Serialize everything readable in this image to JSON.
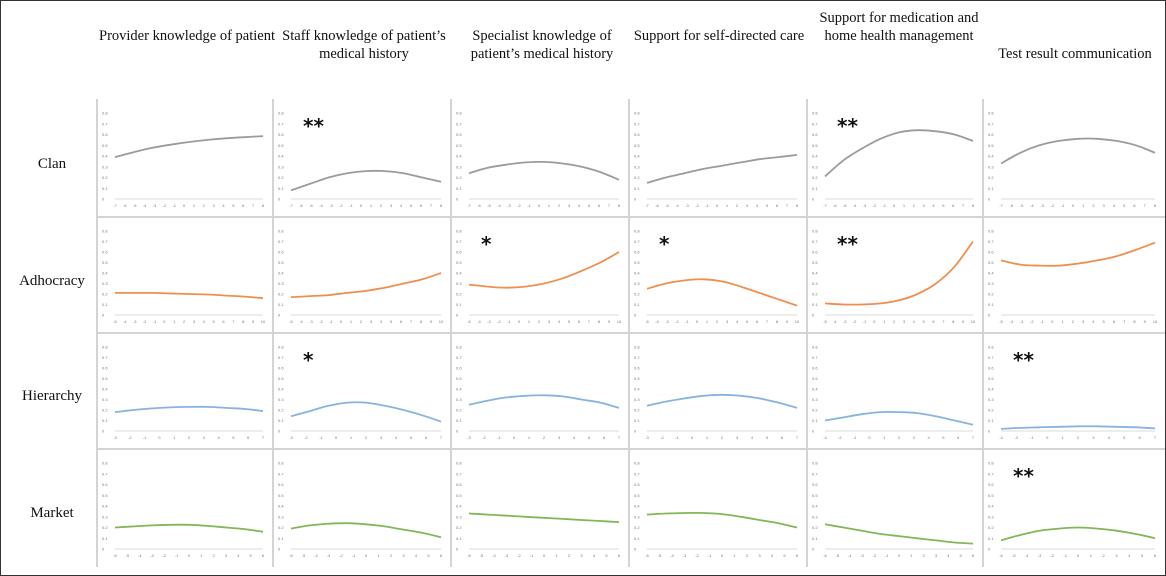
{
  "columns": [
    "Provider knowledge of patient",
    "Staff knowledge of patient’s medical history",
    "Specialist knowledge of patient’s medical history",
    "Support for self-directed care",
    "Support for medication and home health management",
    "Test result communication"
  ],
  "rows": [
    {
      "label": "Clan",
      "color": "#9b9b9b"
    },
    {
      "label": "Adhocracy",
      "color": "#ef8f4f"
    },
    {
      "label": "Hierarchy",
      "color": "#88b3e0"
    },
    {
      "label": "Market",
      "color": "#83b659"
    }
  ],
  "chart_data": {
    "type": "line",
    "ylim": [
      0,
      0.8
    ],
    "y_ticks": [
      "0",
      "0.1",
      "0.2",
      "0.3",
      "0.4",
      "0.5",
      "0.6",
      "0.7",
      "0.8"
    ],
    "row_x_ticks": [
      [
        "-7",
        "-6",
        "-5",
        "-4",
        "-3",
        "-2",
        "-1",
        "0",
        "1",
        "2",
        "3",
        "4",
        "5",
        "6",
        "7",
        "8"
      ],
      [
        "-5",
        "-4",
        "-3",
        "-2",
        "-1",
        "0",
        "1",
        "2",
        "3",
        "4",
        "5",
        "6",
        "7",
        "8",
        "9",
        "10"
      ],
      [
        "-3",
        "-2",
        "-1",
        "0",
        "1",
        "2",
        "3",
        "4",
        "5",
        "6",
        "7"
      ],
      [
        "-6",
        "-5",
        "-4",
        "-3",
        "-2",
        "-1",
        "0",
        "1",
        "2",
        "3",
        "4",
        "5",
        "6"
      ]
    ],
    "panels": [
      [
        {
          "significance": "",
          "y": [
            0.39,
            0.435,
            0.475,
            0.505,
            0.53,
            0.55,
            0.565,
            0.575,
            0.585
          ]
        },
        {
          "significance": "**",
          "y": [
            0.08,
            0.14,
            0.2,
            0.24,
            0.26,
            0.26,
            0.24,
            0.2,
            0.16
          ]
        },
        {
          "significance": "",
          "y": [
            0.24,
            0.29,
            0.32,
            0.34,
            0.345,
            0.33,
            0.3,
            0.25,
            0.18
          ]
        },
        {
          "significance": "",
          "y": [
            0.15,
            0.2,
            0.24,
            0.28,
            0.31,
            0.34,
            0.37,
            0.39,
            0.41
          ]
        },
        {
          "significance": "**",
          "y": [
            0.21,
            0.36,
            0.47,
            0.56,
            0.62,
            0.64,
            0.63,
            0.6,
            0.54
          ]
        },
        {
          "significance": "",
          "y": [
            0.33,
            0.43,
            0.5,
            0.54,
            0.56,
            0.56,
            0.54,
            0.5,
            0.43
          ]
        }
      ],
      [
        {
          "significance": "",
          "y": [
            0.21,
            0.21,
            0.21,
            0.205,
            0.2,
            0.195,
            0.185,
            0.175,
            0.16
          ]
        },
        {
          "significance": "",
          "y": [
            0.17,
            0.18,
            0.19,
            0.21,
            0.23,
            0.26,
            0.3,
            0.34,
            0.4
          ]
        },
        {
          "significance": "*",
          "y": [
            0.29,
            0.27,
            0.26,
            0.27,
            0.3,
            0.35,
            0.42,
            0.5,
            0.6
          ]
        },
        {
          "significance": "*",
          "y": [
            0.25,
            0.3,
            0.33,
            0.34,
            0.32,
            0.27,
            0.21,
            0.15,
            0.09
          ]
        },
        {
          "significance": "**",
          "y": [
            0.11,
            0.1,
            0.1,
            0.11,
            0.14,
            0.2,
            0.3,
            0.46,
            0.7
          ]
        },
        {
          "significance": "",
          "y": [
            0.52,
            0.48,
            0.47,
            0.47,
            0.49,
            0.52,
            0.56,
            0.62,
            0.69
          ]
        }
      ],
      [
        {
          "significance": "",
          "y": [
            0.18,
            0.2,
            0.215,
            0.225,
            0.23,
            0.23,
            0.22,
            0.21,
            0.19
          ]
        },
        {
          "significance": "*",
          "y": [
            0.14,
            0.19,
            0.24,
            0.27,
            0.27,
            0.24,
            0.2,
            0.15,
            0.09
          ]
        },
        {
          "significance": "",
          "y": [
            0.25,
            0.29,
            0.32,
            0.335,
            0.34,
            0.33,
            0.3,
            0.27,
            0.22
          ]
        },
        {
          "significance": "",
          "y": [
            0.24,
            0.28,
            0.31,
            0.335,
            0.345,
            0.335,
            0.31,
            0.27,
            0.22
          ]
        },
        {
          "significance": "",
          "y": [
            0.1,
            0.13,
            0.16,
            0.18,
            0.18,
            0.17,
            0.14,
            0.1,
            0.06
          ]
        },
        {
          "significance": "**",
          "y": [
            0.02,
            0.03,
            0.035,
            0.04,
            0.045,
            0.045,
            0.04,
            0.035,
            0.025
          ]
        }
      ],
      [
        {
          "significance": "",
          "y": [
            0.2,
            0.21,
            0.22,
            0.225,
            0.225,
            0.215,
            0.2,
            0.185,
            0.16
          ]
        },
        {
          "significance": "",
          "y": [
            0.19,
            0.22,
            0.235,
            0.24,
            0.23,
            0.21,
            0.18,
            0.15,
            0.11
          ]
        },
        {
          "significance": "",
          "y": [
            0.33,
            0.32,
            0.31,
            0.3,
            0.29,
            0.28,
            0.27,
            0.26,
            0.25
          ]
        },
        {
          "significance": "",
          "y": [
            0.32,
            0.33,
            0.335,
            0.335,
            0.325,
            0.3,
            0.27,
            0.24,
            0.2
          ]
        },
        {
          "significance": "",
          "y": [
            0.23,
            0.2,
            0.17,
            0.14,
            0.12,
            0.1,
            0.08,
            0.06,
            0.05
          ]
        },
        {
          "significance": "**",
          "y": [
            0.08,
            0.13,
            0.17,
            0.19,
            0.2,
            0.19,
            0.17,
            0.14,
            0.1
          ]
        }
      ]
    ]
  }
}
